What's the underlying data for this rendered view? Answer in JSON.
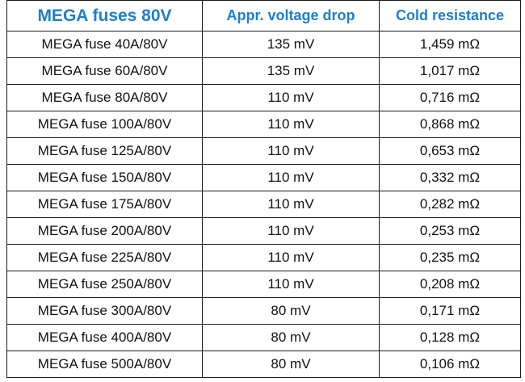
{
  "table": {
    "headers": [
      "MEGA fuses 80V",
      "Appr. voltage drop",
      "Cold resistance"
    ],
    "rows": [
      [
        "MEGA fuse 40A/80V",
        "135 mV",
        "1,459 mΩ"
      ],
      [
        "MEGA fuse 60A/80V",
        "135 mV",
        "1,017 mΩ"
      ],
      [
        "MEGA fuse 80A/80V",
        "110 mV",
        "0,716 mΩ"
      ],
      [
        "MEGA fuse 100A/80V",
        "110 mV",
        "0,868 mΩ"
      ],
      [
        "MEGA fuse 125A/80V",
        "110 mV",
        "0,653 mΩ"
      ],
      [
        "MEGA fuse 150A/80V",
        "110 mV",
        "0,332 mΩ"
      ],
      [
        "MEGA fuse 175A/80V",
        "110 mV",
        "0,282 mΩ"
      ],
      [
        "MEGA fuse 200A/80V",
        "110 mV",
        "0,253 mΩ"
      ],
      [
        "MEGA fuse 225A/80V",
        "110 mV",
        "0,235 mΩ"
      ],
      [
        "MEGA fuse 250A/80V",
        "110 mV",
        "0,208 mΩ"
      ],
      [
        "MEGA fuse 300A/80V",
        "80 mV",
        "0,171 mΩ"
      ],
      [
        "MEGA fuse 400A/80V",
        "80 mV",
        "0,128 mΩ"
      ],
      [
        "MEGA fuse 500A/80V",
        "80 mV",
        "0,106 mΩ"
      ]
    ]
  },
  "colors": {
    "header_text": "#1f7ec8",
    "body_text": "#111111",
    "border": "#1a1a1a"
  }
}
